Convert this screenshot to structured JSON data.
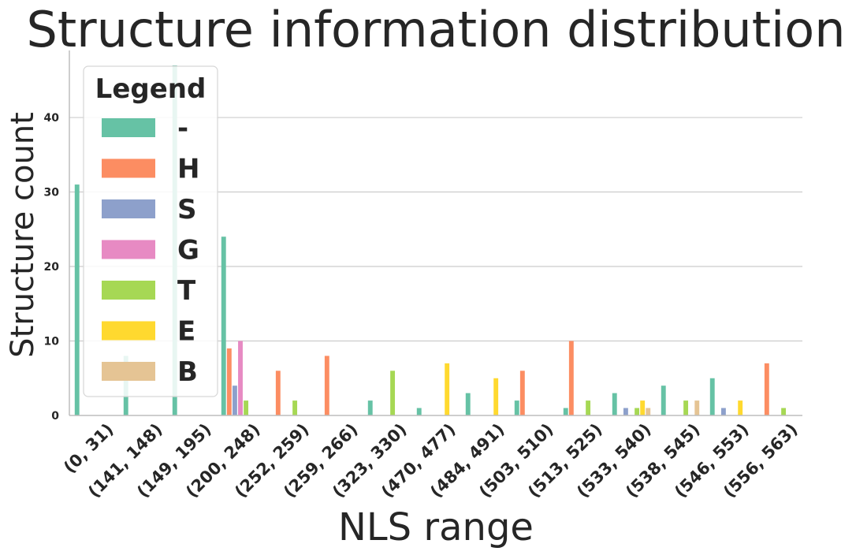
{
  "chart_data": {
    "type": "bar",
    "title": "Structure information distribution",
    "xlabel": "NLS range",
    "ylabel": "Structure count",
    "ylim": [
      0,
      49
    ],
    "yticks": [
      0,
      10,
      20,
      30,
      40
    ],
    "grid": "horizontal",
    "legend": {
      "title": "Legend",
      "placement": "top-left"
    },
    "categories": [
      "(0, 31)",
      "(141, 148)",
      "(149, 195)",
      "(200, 248)",
      "(252, 259)",
      "(259, 266)",
      "(323, 330)",
      "(470, 477)",
      "(484, 491)",
      "(503, 510)",
      "(513, 525)",
      "(533, 540)",
      "(538, 545)",
      "(546, 553)",
      "(556, 563)"
    ],
    "series": [
      {
        "name": "-",
        "color": "#66c2a5",
        "values": [
          31,
          8,
          47,
          24,
          0,
          0,
          2,
          1,
          3,
          2,
          1,
          3,
          4,
          5,
          0
        ]
      },
      {
        "name": "H",
        "color": "#fc8d62",
        "values": [
          0,
          0,
          0,
          9,
          6,
          8,
          0,
          0,
          0,
          6,
          10,
          0,
          0,
          0,
          7
        ]
      },
      {
        "name": "S",
        "color": "#8da0cb",
        "values": [
          0,
          0,
          0,
          4,
          0,
          0,
          0,
          0,
          0,
          0,
          0,
          1,
          0,
          1,
          0
        ]
      },
      {
        "name": "G",
        "color": "#e78ac3",
        "values": [
          0,
          0,
          0,
          10,
          0,
          0,
          0,
          0,
          0,
          0,
          0,
          0,
          0,
          0,
          0
        ]
      },
      {
        "name": "T",
        "color": "#a6d854",
        "values": [
          0,
          0,
          0,
          2,
          2,
          0,
          6,
          0,
          0,
          0,
          2,
          1,
          2,
          0,
          1
        ]
      },
      {
        "name": "E",
        "color": "#ffd92f",
        "values": [
          0,
          0,
          0,
          0,
          0,
          0,
          0,
          7,
          5,
          0,
          0,
          2,
          0,
          2,
          0
        ]
      },
      {
        "name": "B",
        "color": "#e5c494",
        "values": [
          0,
          0,
          0,
          0,
          0,
          0,
          0,
          0,
          0,
          0,
          0,
          1,
          2,
          0,
          0
        ]
      }
    ]
  }
}
